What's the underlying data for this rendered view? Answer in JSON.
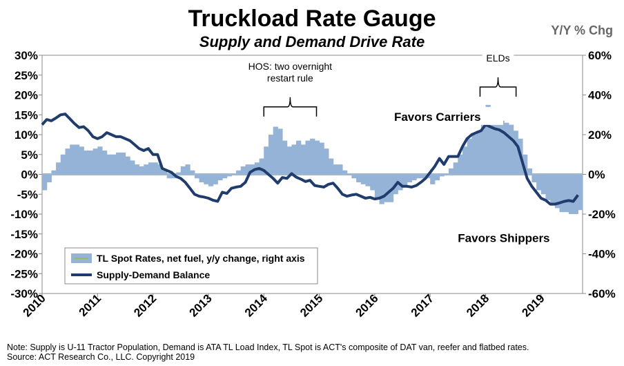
{
  "chart_data": {
    "type": "area",
    "title": "Truckload Rate Gauge",
    "subtitle": "Supply and Demand Drive Rate",
    "right_axis_unit": "Y/Y % Chg",
    "x_range": [
      2010,
      2019.75
    ],
    "x_tick_labels": [
      "2010",
      "2011",
      "2012",
      "2013",
      "2014",
      "2015",
      "2016",
      "2017",
      "2018",
      "2019"
    ],
    "left_ylim": [
      -30,
      30
    ],
    "left_tick_labels": [
      "30%",
      "25%",
      "20%",
      "15%",
      "10%",
      "5%",
      "0%",
      "-5%",
      "-10%",
      "-15%",
      "-20%",
      "-25%",
      "-30%"
    ],
    "right_ylim": [
      -60,
      60
    ],
    "right_tick_labels": [
      "60%",
      "40%",
      "20%",
      "0%",
      "-20%",
      "-40%",
      "-60%"
    ],
    "series": [
      {
        "name": "TL Spot Rates, net fuel, y/y change, right axis",
        "axis": "right",
        "style": "bars",
        "color": "#95b3d7",
        "x": [
          2010.0,
          2010.083,
          2010.167,
          2010.25,
          2010.333,
          2010.417,
          2010.5,
          2010.583,
          2010.667,
          2010.75,
          2010.833,
          2010.917,
          2011.0,
          2011.083,
          2011.167,
          2011.25,
          2011.333,
          2011.417,
          2011.5,
          2011.583,
          2011.667,
          2011.75,
          2011.833,
          2011.917,
          2012.0,
          2012.083,
          2012.167,
          2012.25,
          2012.333,
          2012.417,
          2012.5,
          2012.583,
          2012.667,
          2012.75,
          2012.833,
          2012.917,
          2013.0,
          2013.083,
          2013.167,
          2013.25,
          2013.333,
          2013.417,
          2013.5,
          2013.583,
          2013.667,
          2013.75,
          2013.833,
          2013.917,
          2014.0,
          2014.083,
          2014.167,
          2014.25,
          2014.333,
          2014.417,
          2014.5,
          2014.583,
          2014.667,
          2014.75,
          2014.833,
          2014.917,
          2015.0,
          2015.083,
          2015.167,
          2015.25,
          2015.333,
          2015.417,
          2015.5,
          2015.583,
          2015.667,
          2015.75,
          2015.833,
          2015.917,
          2016.0,
          2016.083,
          2016.167,
          2016.25,
          2016.333,
          2016.417,
          2016.5,
          2016.583,
          2016.667,
          2016.75,
          2016.833,
          2016.917,
          2017.0,
          2017.083,
          2017.167,
          2017.25,
          2017.333,
          2017.417,
          2017.5,
          2017.583,
          2017.667,
          2017.75,
          2017.833,
          2017.917,
          2018.0,
          2018.083,
          2018.167,
          2018.25,
          2018.333,
          2018.417,
          2018.5,
          2018.583,
          2018.667,
          2018.75,
          2018.833,
          2018.917,
          2019.0,
          2019.083,
          2019.167,
          2019.25,
          2019.333,
          2019.417,
          2019.5,
          2019.583,
          2019.667
        ],
        "values": [
          -8,
          -4,
          2,
          6,
          10,
          13,
          15,
          15,
          14,
          12,
          12,
          13,
          14,
          12,
          10,
          10,
          11,
          11,
          9,
          7,
          5,
          4,
          5,
          6,
          6,
          5,
          2,
          -2,
          -2,
          1,
          4,
          5,
          2,
          -2,
          -4,
          -5,
          -6,
          -5,
          -3,
          -2,
          -1,
          0,
          2,
          4,
          5,
          5,
          6,
          8,
          14,
          20,
          24,
          23,
          17,
          14,
          15,
          17,
          15,
          17,
          18,
          17,
          16,
          13,
          8,
          5,
          5,
          2,
          0,
          -2,
          -4,
          -5,
          -6,
          -8,
          -12,
          -15,
          -14,
          -14,
          -10,
          -8,
          -6,
          -4,
          -3,
          -2,
          -2,
          -2,
          -5,
          -3,
          -1,
          0,
          3,
          6,
          10,
          14,
          18,
          20,
          22,
          26,
          35,
          30,
          28,
          27,
          26,
          25,
          22,
          18,
          10,
          3,
          -4,
          -8,
          -10,
          -13,
          -15,
          -17,
          -19,
          -19,
          -20,
          -20,
          -18
        ]
      },
      {
        "name": "Supply-Demand Balance",
        "axis": "left",
        "style": "line",
        "color": "#1f3c6d",
        "x": [
          2010.0,
          2010.083,
          2010.167,
          2010.25,
          2010.333,
          2010.417,
          2010.5,
          2010.583,
          2010.667,
          2010.75,
          2010.833,
          2010.917,
          2011.0,
          2011.083,
          2011.167,
          2011.25,
          2011.333,
          2011.417,
          2011.5,
          2011.583,
          2011.667,
          2011.75,
          2011.833,
          2011.917,
          2012.0,
          2012.083,
          2012.167,
          2012.25,
          2012.333,
          2012.417,
          2012.5,
          2012.583,
          2012.667,
          2012.75,
          2012.833,
          2012.917,
          2013.0,
          2013.083,
          2013.167,
          2013.25,
          2013.333,
          2013.417,
          2013.5,
          2013.583,
          2013.667,
          2013.75,
          2013.833,
          2013.917,
          2014.0,
          2014.083,
          2014.167,
          2014.25,
          2014.333,
          2014.417,
          2014.5,
          2014.583,
          2014.667,
          2014.75,
          2014.833,
          2014.917,
          2015.0,
          2015.083,
          2015.167,
          2015.25,
          2015.333,
          2015.417,
          2015.5,
          2015.583,
          2015.667,
          2015.75,
          2015.833,
          2015.917,
          2016.0,
          2016.083,
          2016.167,
          2016.25,
          2016.333,
          2016.417,
          2016.5,
          2016.583,
          2016.667,
          2016.75,
          2016.833,
          2016.917,
          2017.0,
          2017.083,
          2017.167,
          2017.25,
          2017.333,
          2017.417,
          2017.5,
          2017.583,
          2017.667,
          2017.75,
          2017.833,
          2017.917,
          2018.0,
          2018.083,
          2018.167,
          2018.25,
          2018.333,
          2018.417,
          2018.5,
          2018.583,
          2018.667,
          2018.75,
          2018.833,
          2018.917,
          2019.0,
          2019.083,
          2019.167,
          2019.25,
          2019.333,
          2019.417,
          2019.5,
          2019.583,
          2019.667
        ],
        "values": [
          12.5,
          13.8,
          13.5,
          14.2,
          15.0,
          15.2,
          14.0,
          12.8,
          11.8,
          12.0,
          11.0,
          9.5,
          9.0,
          9.5,
          10.5,
          10.0,
          9.5,
          9.5,
          9.0,
          8.5,
          7.5,
          6.5,
          6.0,
          6.5,
          5.0,
          5.0,
          1.5,
          1.0,
          0.5,
          -0.5,
          -1.0,
          -2.0,
          -3.5,
          -5.0,
          -5.5,
          -5.7,
          -6.0,
          -6.5,
          -6.8,
          -4.5,
          -4.8,
          -3.5,
          -3.2,
          -3.0,
          -2.0,
          0.5,
          1.2,
          1.5,
          1.0,
          0.0,
          -1.0,
          -2.2,
          -0.8,
          -1.0,
          0.2,
          -0.7,
          -1.2,
          -1.8,
          -1.5,
          -2.8,
          -3.0,
          -3.2,
          -2.5,
          -2.2,
          -3.5,
          -5.0,
          -5.5,
          -5.2,
          -5.0,
          -5.5,
          -6.0,
          -5.8,
          -6.2,
          -6.0,
          -5.5,
          -4.5,
          -3.5,
          -2.0,
          -3.0,
          -3.0,
          -3.2,
          -2.8,
          -2.0,
          -1.0,
          0.5,
          2.0,
          4.0,
          2.5,
          4.5,
          4.5,
          4.5,
          7.0,
          9.0,
          10.0,
          10.5,
          11.0,
          12.5,
          12.0,
          11.5,
          11.2,
          10.5,
          9.5,
          8.5,
          7.0,
          3.0,
          -1.0,
          -3.0,
          -4.5,
          -6.0,
          -6.5,
          -7.5,
          -7.5,
          -7.2,
          -6.8,
          -6.6,
          -6.8,
          -5.2
        ]
      }
    ],
    "annotations": [
      {
        "text_lines": [
          "HOS: two overnight",
          "restart rule"
        ],
        "x_start": 2014.0,
        "x_end": 2014.95,
        "y_left": 17
      },
      {
        "text_lines": [
          "ELDs"
        ],
        "x_start": 2017.9,
        "x_end": 2018.55,
        "y_left": 22
      },
      {
        "text_lines": [
          "Favors Carriers"
        ],
        "x": 2016.35,
        "y_left": 13.5
      },
      {
        "text_lines": [
          "Favors Shippers"
        ],
        "x": 2017.5,
        "y_left": -17
      }
    ],
    "legend_position": "bottom-left",
    "grid": false
  },
  "footer": {
    "note": "Note: Supply is U-11 Tractor Population, Demand is ATA TL Load Index, TL Spot is ACT's composite of DAT van, reefer and flatbed rates.",
    "source": "Source: ACT Research Co., LLC. Copyright 2019"
  }
}
